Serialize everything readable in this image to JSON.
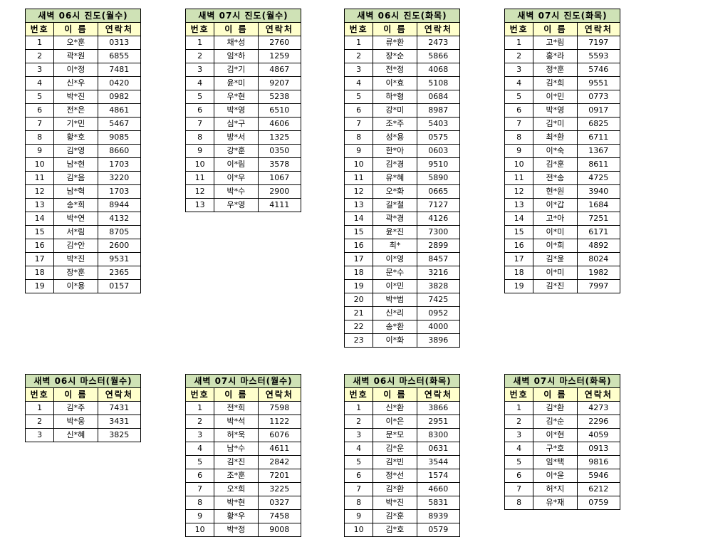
{
  "headers": [
    "번호",
    "이 름",
    "연락처"
  ],
  "colors": {
    "title_bg": "#cfe2b6",
    "header_bg": "#ffffcc",
    "border": "#000000"
  },
  "tables": [
    {
      "title": "새벽 06시 진도(월수)",
      "rows": [
        [
          "1",
          "오*훈",
          "0313"
        ],
        [
          "2",
          "곽*원",
          "6855"
        ],
        [
          "3",
          "이*정",
          "7481"
        ],
        [
          "4",
          "신*우",
          "0420"
        ],
        [
          "5",
          "박*진",
          "0982"
        ],
        [
          "6",
          "전*은",
          "4861"
        ],
        [
          "7",
          "기*민",
          "5467"
        ],
        [
          "8",
          "황*호",
          "9085"
        ],
        [
          "9",
          "김*영",
          "8660"
        ],
        [
          "10",
          "남*현",
          "1703"
        ],
        [
          "11",
          "김*음",
          "3220"
        ],
        [
          "12",
          "남*혁",
          "1703"
        ],
        [
          "13",
          "송*희",
          "8944"
        ],
        [
          "14",
          "박*연",
          "4132"
        ],
        [
          "15",
          "서*림",
          "8705"
        ],
        [
          "16",
          "김*안",
          "2600"
        ],
        [
          "17",
          "박*진",
          "9531"
        ],
        [
          "18",
          "장*훈",
          "2365"
        ],
        [
          "19",
          "이*용",
          "0157"
        ]
      ]
    },
    {
      "title": "새벽 07시 진도(월수)",
      "rows": [
        [
          "1",
          "채*성",
          "2760"
        ],
        [
          "2",
          "임*하",
          "1259"
        ],
        [
          "3",
          "김*기",
          "4867"
        ],
        [
          "4",
          "윤*미",
          "9207"
        ],
        [
          "5",
          "우*현",
          "5238"
        ],
        [
          "6",
          "박*영",
          "6510"
        ],
        [
          "7",
          "심*구",
          "4606"
        ],
        [
          "8",
          "방*서",
          "1325"
        ],
        [
          "9",
          "강*훈",
          "0350"
        ],
        [
          "10",
          "이*림",
          "3578"
        ],
        [
          "11",
          "이*우",
          "1067"
        ],
        [
          "12",
          "박*수",
          "2900"
        ],
        [
          "13",
          "우*영",
          "4111"
        ]
      ]
    },
    {
      "title": "새벽 06시 진도(화목)",
      "rows": [
        [
          "1",
          "류*환",
          "2473"
        ],
        [
          "2",
          "장*순",
          "5866"
        ],
        [
          "3",
          "전*정",
          "4068"
        ],
        [
          "4",
          "이*효",
          "5108"
        ],
        [
          "5",
          "하*형",
          "0684"
        ],
        [
          "6",
          "강*미",
          "8987"
        ],
        [
          "7",
          "조*주",
          "5403"
        ],
        [
          "8",
          "성*용",
          "0575"
        ],
        [
          "9",
          "한*아",
          "0603"
        ],
        [
          "10",
          "김*경",
          "9510"
        ],
        [
          "11",
          "유*혜",
          "5890"
        ],
        [
          "12",
          "오*화",
          "0665"
        ],
        [
          "13",
          "길*철",
          "7127"
        ],
        [
          "14",
          "곽*경",
          "4126"
        ],
        [
          "15",
          "윤*진",
          "7300"
        ],
        [
          "16",
          "최*",
          "2899"
        ],
        [
          "17",
          "이*영",
          "8457"
        ],
        [
          "18",
          "문*수",
          "3216"
        ],
        [
          "19",
          "이*민",
          "3828"
        ],
        [
          "20",
          "박*범",
          "7425"
        ],
        [
          "21",
          "신*리",
          "0952"
        ],
        [
          "22",
          "송*환",
          "4000"
        ],
        [
          "23",
          "이*화",
          "3896"
        ]
      ]
    },
    {
      "title": "새벽 07시 진도(화목)",
      "rows": [
        [
          "1",
          "고*림",
          "7197"
        ],
        [
          "2",
          "홍*라",
          "5593"
        ],
        [
          "3",
          "정*훈",
          "5746"
        ],
        [
          "4",
          "김*희",
          "9551"
        ],
        [
          "5",
          "이*민",
          "0773"
        ],
        [
          "6",
          "박*영",
          "0917"
        ],
        [
          "7",
          "김*미",
          "6825"
        ],
        [
          "8",
          "최*환",
          "6711"
        ],
        [
          "9",
          "이*숙",
          "1367"
        ],
        [
          "10",
          "김*훈",
          "8611"
        ],
        [
          "11",
          "전*송",
          "4725"
        ],
        [
          "12",
          "현*원",
          "3940"
        ],
        [
          "13",
          "이*갑",
          "1684"
        ],
        [
          "14",
          "고*아",
          "7251"
        ],
        [
          "15",
          "이*미",
          "6171"
        ],
        [
          "16",
          "이*희",
          "4892"
        ],
        [
          "17",
          "김*윤",
          "8024"
        ],
        [
          "18",
          "이*미",
          "1982"
        ],
        [
          "19",
          "김*진",
          "7997"
        ]
      ]
    },
    {
      "title": "새벽 06시 마스터(월수)",
      "rows": [
        [
          "1",
          "김*주",
          "7431"
        ],
        [
          "2",
          "박*웅",
          "3431"
        ],
        [
          "3",
          "신*혜",
          "3825"
        ]
      ]
    },
    {
      "title": "새벽 07시 마스터(월수)",
      "rows": [
        [
          "1",
          "전*희",
          "7598"
        ],
        [
          "2",
          "박*석",
          "1122"
        ],
        [
          "3",
          "허*욱",
          "6076"
        ],
        [
          "4",
          "남*수",
          "4611"
        ],
        [
          "5",
          "김*진",
          "2842"
        ],
        [
          "6",
          "조*훈",
          "7201"
        ],
        [
          "7",
          "오*희",
          "3225"
        ],
        [
          "8",
          "박*현",
          "0327"
        ],
        [
          "9",
          "황*우",
          "7458"
        ],
        [
          "10",
          "박*정",
          "9008"
        ]
      ]
    },
    {
      "title": "새벽 06시 마스터(화목)",
      "rows": [
        [
          "1",
          "신*환",
          "3866"
        ],
        [
          "2",
          "이*은",
          "2951"
        ],
        [
          "3",
          "문*모",
          "8300"
        ],
        [
          "4",
          "김*운",
          "0631"
        ],
        [
          "5",
          "김*빈",
          "3544"
        ],
        [
          "6",
          "정*선",
          "1574"
        ],
        [
          "7",
          "김*환",
          "4660"
        ],
        [
          "8",
          "박*진",
          "5831"
        ],
        [
          "9",
          "김*훈",
          "8939"
        ],
        [
          "10",
          "김*호",
          "0579"
        ]
      ]
    },
    {
      "title": "새벽 07시 마스터(화목)",
      "rows": [
        [
          "1",
          "김*환",
          "4273"
        ],
        [
          "2",
          "김*순",
          "2296"
        ],
        [
          "3",
          "이*현",
          "4059"
        ],
        [
          "4",
          "구*호",
          "0913"
        ],
        [
          "5",
          "임*택",
          "9816"
        ],
        [
          "6",
          "이*윤",
          "5946"
        ],
        [
          "7",
          "허*지",
          "6212"
        ],
        [
          "8",
          "유*재",
          "0759"
        ]
      ]
    }
  ]
}
